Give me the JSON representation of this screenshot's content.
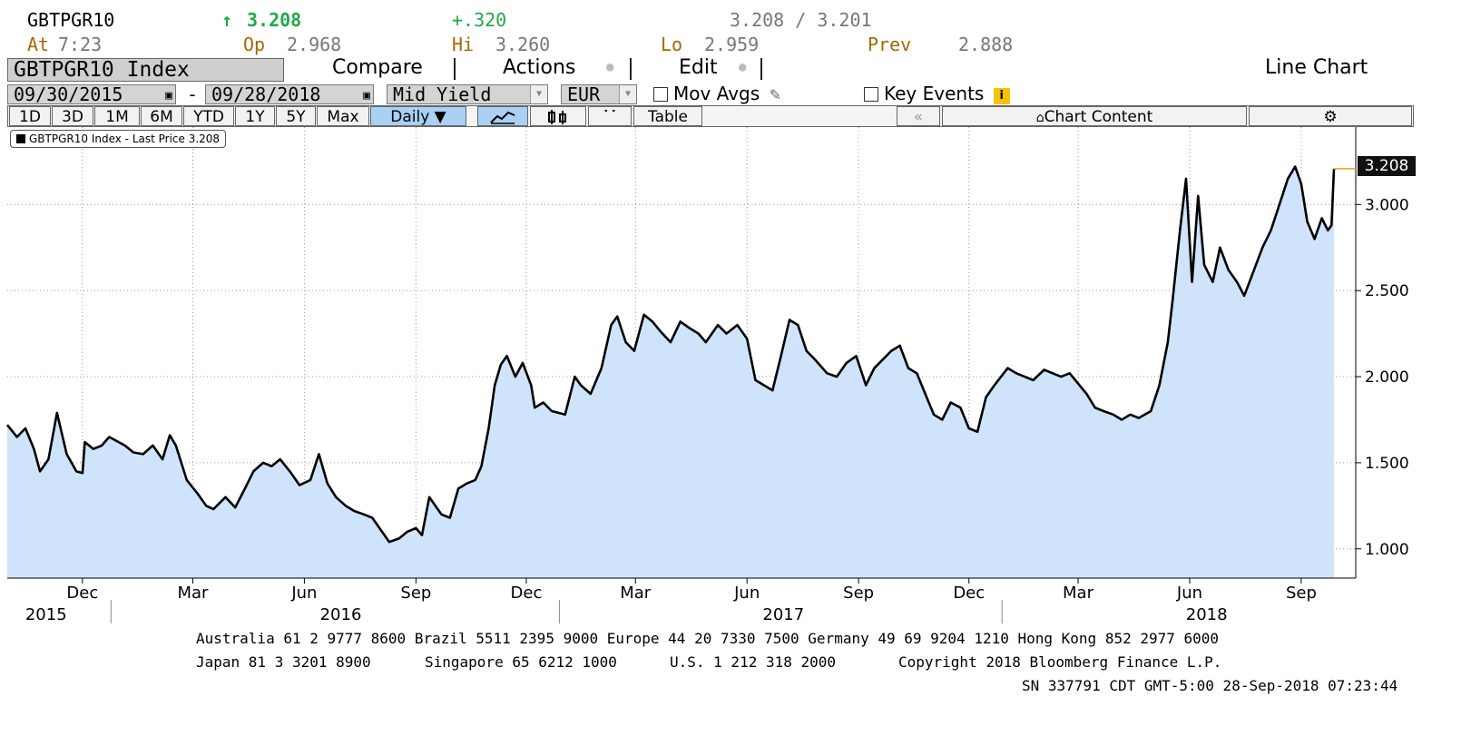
{
  "header": {
    "ticker": "GBTPGR10",
    "arrow": "↑",
    "last": "3.208",
    "change": "+.320",
    "bid_ask": "3.208 / 3.201",
    "at_label": "At",
    "at_time": "7:23",
    "op_label": "Op",
    "op_value": "2.968",
    "hi_label": "Hi",
    "hi_value": "3.260",
    "lo_label": "Lo",
    "lo_value": "2.959",
    "prev_label": "Prev",
    "prev_value": "2.888"
  },
  "toolbar": {
    "security": "GBTPGR10 Index",
    "compare": "Compare",
    "actions": "Actions",
    "edit": "Edit",
    "chart_type": "Line Chart",
    "start_date": "09/30/2015",
    "dash": "-",
    "end_date": "09/28/2018",
    "field": "Mid Yield",
    "currency": "EUR",
    "mov_avgs": "Mov Avgs",
    "key_events": "Key Events",
    "periods": [
      "1D",
      "3D",
      "1M",
      "6M",
      "YTD",
      "1Y",
      "5Y",
      "Max"
    ],
    "frequency": "Daily ▼",
    "table": "Table",
    "chart_content": "Chart Content"
  },
  "colors": {
    "area_fill": "#cfe4fb",
    "line": "#000000",
    "frequency_active": "#a9d0f5",
    "header_green": "#1fa84a",
    "label_brown": "#a46a00"
  },
  "chart_data": {
    "type": "area",
    "legend": "GBTPGR10 Index - Last Price 3.208",
    "last_value_label": "3.208",
    "x_start": "2015-09-30",
    "x_end": "2018-09-28",
    "ylim": [
      0.83,
      3.45
    ],
    "yticks": [
      1.0,
      1.5,
      2.0,
      2.5,
      3.0
    ],
    "ytick_labels": [
      "1.000",
      "1.500",
      "2.000",
      "2.500",
      "3.000"
    ],
    "grid": true,
    "month_labels": [
      {
        "date": "2015-12-01",
        "label": "Dec"
      },
      {
        "date": "2016-03-01",
        "label": "Mar"
      },
      {
        "date": "2016-06-01",
        "label": "Jun"
      },
      {
        "date": "2016-09-01",
        "label": "Sep"
      },
      {
        "date": "2016-12-01",
        "label": "Dec"
      },
      {
        "date": "2017-03-01",
        "label": "Mar"
      },
      {
        "date": "2017-06-01",
        "label": "Jun"
      },
      {
        "date": "2017-09-01",
        "label": "Sep"
      },
      {
        "date": "2017-12-01",
        "label": "Dec"
      },
      {
        "date": "2018-03-01",
        "label": "Mar"
      },
      {
        "date": "2018-06-01",
        "label": "Jun"
      },
      {
        "date": "2018-09-01",
        "label": "Sep"
      }
    ],
    "year_labels": [
      {
        "date": "2015-11-01",
        "label": "2015"
      },
      {
        "date": "2016-07-01",
        "label": "2016"
      },
      {
        "date": "2017-07-01",
        "label": "2017"
      },
      {
        "date": "2018-06-15",
        "label": "2018"
      }
    ],
    "year_dividers": [
      "2016-01-01",
      "2017-01-01",
      "2018-01-01"
    ],
    "series": [
      {
        "name": "GBTPGR10 Index",
        "points": [
          [
            "2015-09-30",
            1.72
          ],
          [
            "2015-10-08",
            1.65
          ],
          [
            "2015-10-15",
            1.7
          ],
          [
            "2015-10-22",
            1.58
          ],
          [
            "2015-10-27",
            1.45
          ],
          [
            "2015-11-03",
            1.52
          ],
          [
            "2015-11-10",
            1.79
          ],
          [
            "2015-11-18",
            1.55
          ],
          [
            "2015-11-26",
            1.45
          ],
          [
            "2015-12-01",
            1.44
          ],
          [
            "2015-12-03",
            1.62
          ],
          [
            "2015-12-10",
            1.58
          ],
          [
            "2015-12-17",
            1.6
          ],
          [
            "2015-12-23",
            1.65
          ],
          [
            "2016-01-05",
            1.6
          ],
          [
            "2016-01-12",
            1.56
          ],
          [
            "2016-01-20",
            1.55
          ],
          [
            "2016-01-28",
            1.6
          ],
          [
            "2016-02-05",
            1.52
          ],
          [
            "2016-02-11",
            1.66
          ],
          [
            "2016-02-16",
            1.6
          ],
          [
            "2016-02-25",
            1.4
          ],
          [
            "2016-03-05",
            1.32
          ],
          [
            "2016-03-12",
            1.25
          ],
          [
            "2016-03-18",
            1.23
          ],
          [
            "2016-03-28",
            1.3
          ],
          [
            "2016-04-05",
            1.24
          ],
          [
            "2016-04-13",
            1.35
          ],
          [
            "2016-04-20",
            1.45
          ],
          [
            "2016-04-28",
            1.5
          ],
          [
            "2016-05-05",
            1.48
          ],
          [
            "2016-05-12",
            1.52
          ],
          [
            "2016-05-20",
            1.45
          ],
          [
            "2016-05-28",
            1.37
          ],
          [
            "2016-06-06",
            1.4
          ],
          [
            "2016-06-13",
            1.55
          ],
          [
            "2016-06-20",
            1.38
          ],
          [
            "2016-06-27",
            1.3
          ],
          [
            "2016-07-05",
            1.25
          ],
          [
            "2016-07-12",
            1.22
          ],
          [
            "2016-07-20",
            1.2
          ],
          [
            "2016-07-27",
            1.18
          ],
          [
            "2016-08-04",
            1.1
          ],
          [
            "2016-08-10",
            1.04
          ],
          [
            "2016-08-18",
            1.06
          ],
          [
            "2016-08-25",
            1.1
          ],
          [
            "2016-09-01",
            1.12
          ],
          [
            "2016-09-06",
            1.08
          ],
          [
            "2016-09-12",
            1.3
          ],
          [
            "2016-09-17",
            1.25
          ],
          [
            "2016-09-22",
            1.2
          ],
          [
            "2016-09-29",
            1.18
          ],
          [
            "2016-10-06",
            1.35
          ],
          [
            "2016-10-13",
            1.38
          ],
          [
            "2016-10-20",
            1.4
          ],
          [
            "2016-10-25",
            1.48
          ],
          [
            "2016-10-31",
            1.7
          ],
          [
            "2016-11-05",
            1.95
          ],
          [
            "2016-11-10",
            2.07
          ],
          [
            "2016-11-15",
            2.12
          ],
          [
            "2016-11-22",
            2.0
          ],
          [
            "2016-11-28",
            2.08
          ],
          [
            "2016-12-05",
            1.95
          ],
          [
            "2016-12-08",
            1.82
          ],
          [
            "2016-12-15",
            1.85
          ],
          [
            "2016-12-22",
            1.8
          ],
          [
            "2017-01-02",
            1.78
          ],
          [
            "2017-01-10",
            2.0
          ],
          [
            "2017-01-15",
            1.95
          ],
          [
            "2017-01-23",
            1.9
          ],
          [
            "2017-02-01",
            2.05
          ],
          [
            "2017-02-09",
            2.3
          ],
          [
            "2017-02-14",
            2.35
          ],
          [
            "2017-02-21",
            2.2
          ],
          [
            "2017-02-28",
            2.15
          ],
          [
            "2017-03-08",
            2.36
          ],
          [
            "2017-03-15",
            2.32
          ],
          [
            "2017-03-22",
            2.26
          ],
          [
            "2017-03-30",
            2.2
          ],
          [
            "2017-04-07",
            2.32
          ],
          [
            "2017-04-15",
            2.28
          ],
          [
            "2017-04-22",
            2.25
          ],
          [
            "2017-04-28",
            2.2
          ],
          [
            "2017-05-08",
            2.3
          ],
          [
            "2017-05-15",
            2.25
          ],
          [
            "2017-05-24",
            2.3
          ],
          [
            "2017-06-01",
            2.22
          ],
          [
            "2017-06-08",
            1.98
          ],
          [
            "2017-06-15",
            1.95
          ],
          [
            "2017-06-22",
            1.92
          ],
          [
            "2017-06-29",
            2.12
          ],
          [
            "2017-07-06",
            2.33
          ],
          [
            "2017-07-13",
            2.3
          ],
          [
            "2017-07-20",
            2.15
          ],
          [
            "2017-07-27",
            2.1
          ],
          [
            "2017-08-06",
            2.02
          ],
          [
            "2017-08-14",
            2.0
          ],
          [
            "2017-08-22",
            2.08
          ],
          [
            "2017-08-30",
            2.12
          ],
          [
            "2017-09-07",
            1.95
          ],
          [
            "2017-09-14",
            2.05
          ],
          [
            "2017-09-21",
            2.1
          ],
          [
            "2017-09-28",
            2.15
          ],
          [
            "2017-10-05",
            2.18
          ],
          [
            "2017-10-12",
            2.05
          ],
          [
            "2017-10-19",
            2.02
          ],
          [
            "2017-10-26",
            1.9
          ],
          [
            "2017-11-02",
            1.78
          ],
          [
            "2017-11-09",
            1.75
          ],
          [
            "2017-11-16",
            1.85
          ],
          [
            "2017-11-24",
            1.82
          ],
          [
            "2017-12-01",
            1.7
          ],
          [
            "2017-12-08",
            1.68
          ],
          [
            "2017-12-15",
            1.88
          ],
          [
            "2017-12-22",
            1.95
          ],
          [
            "2018-01-02",
            2.05
          ],
          [
            "2018-01-09",
            2.02
          ],
          [
            "2018-01-16",
            2.0
          ],
          [
            "2018-01-23",
            1.98
          ],
          [
            "2018-02-01",
            2.04
          ],
          [
            "2018-02-08",
            2.02
          ],
          [
            "2018-02-15",
            2.0
          ],
          [
            "2018-02-22",
            2.02
          ],
          [
            "2018-03-01",
            1.96
          ],
          [
            "2018-03-08",
            1.9
          ],
          [
            "2018-03-15",
            1.82
          ],
          [
            "2018-03-22",
            1.8
          ],
          [
            "2018-03-30",
            1.78
          ],
          [
            "2018-04-06",
            1.75
          ],
          [
            "2018-04-13",
            1.78
          ],
          [
            "2018-04-20",
            1.76
          ],
          [
            "2018-04-30",
            1.8
          ],
          [
            "2018-05-07",
            1.95
          ],
          [
            "2018-05-14",
            2.2
          ],
          [
            "2018-05-18",
            2.45
          ],
          [
            "2018-05-24",
            2.85
          ],
          [
            "2018-05-29",
            3.15
          ],
          [
            "2018-06-03",
            2.55
          ],
          [
            "2018-06-08",
            3.05
          ],
          [
            "2018-06-13",
            2.65
          ],
          [
            "2018-06-20",
            2.55
          ],
          [
            "2018-06-26",
            2.75
          ],
          [
            "2018-07-03",
            2.62
          ],
          [
            "2018-07-10",
            2.55
          ],
          [
            "2018-07-16",
            2.47
          ],
          [
            "2018-07-23",
            2.6
          ],
          [
            "2018-07-31",
            2.75
          ],
          [
            "2018-08-07",
            2.85
          ],
          [
            "2018-08-14",
            3.0
          ],
          [
            "2018-08-21",
            3.15
          ],
          [
            "2018-08-27",
            3.22
          ],
          [
            "2018-09-01",
            3.12
          ],
          [
            "2018-09-06",
            2.9
          ],
          [
            "2018-09-12",
            2.8
          ],
          [
            "2018-09-18",
            2.92
          ],
          [
            "2018-09-23",
            2.85
          ],
          [
            "2018-09-26",
            2.88
          ],
          [
            "2018-09-28",
            3.208
          ]
        ]
      }
    ]
  },
  "footer": {
    "line1": "Australia 61 2 9777 8600 Brazil 5511 2395 9000 Europe 44 20 7330 7500 Germany 49 69 9204 1210 Hong Kong 852 2977 6000",
    "line2a": "Japan 81 3 3201 8900",
    "line2b": "Singapore 65 6212 1000",
    "line2c": "U.S. 1 212 318 2000",
    "line2d": "Copyright 2018 Bloomberg Finance L.P.",
    "line3": "SN 337791 CDT  GMT-5:00 28-Sep-2018 07:23:44"
  }
}
